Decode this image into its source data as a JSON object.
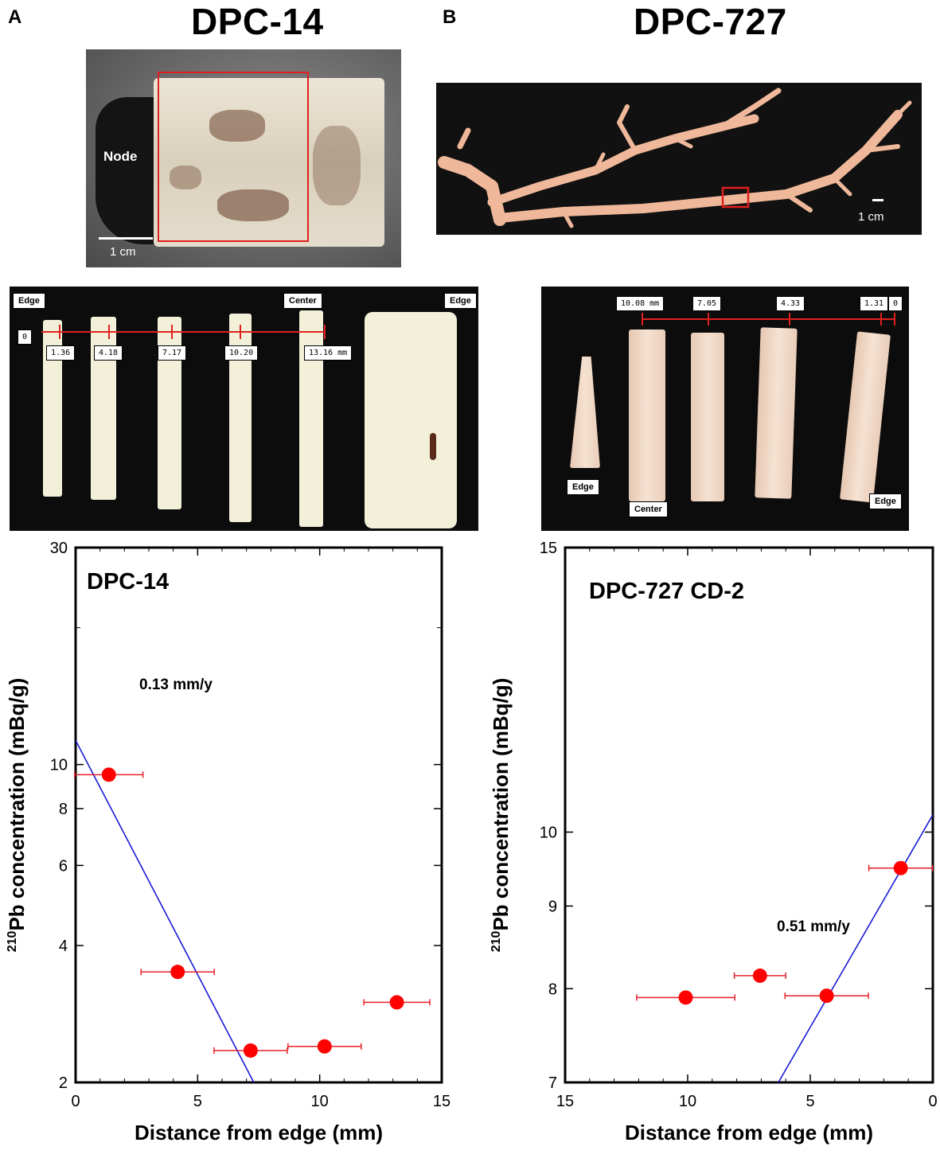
{
  "panel_a": {
    "letter": "A",
    "title": "DPC-14",
    "photo_labels": {
      "node": "Node",
      "scale": "1 cm"
    },
    "section_labels": {
      "edge_left": "Edge",
      "center": "Center",
      "edge_right": "Edge"
    },
    "distance_labels": [
      "0",
      "1.36",
      "4.18",
      "7.17",
      "10.20",
      "13.16 mm"
    ]
  },
  "panel_b": {
    "letter": "B",
    "title": "DPC-727",
    "photo_labels": {
      "scale": "1 cm"
    },
    "section_labels": {
      "edge_left": "Edge",
      "center": "Center",
      "edge_right": "Edge"
    },
    "distance_labels": [
      "10.08 mm",
      "7.05",
      "4.33",
      "1.31",
      "0"
    ]
  },
  "colors": {
    "points": "#ff0000",
    "errorbars": "#e8202a",
    "fit_line": "#1a1ad6",
    "highlight_box": "#e0201e"
  },
  "chart_data": [
    {
      "type": "scatter",
      "title": "DPC-14",
      "xlabel": "Distance from edge (mm)",
      "ylabel_sup": "210",
      "ylabel": "Pb concentration (mBq/g)",
      "xlim": [
        0,
        15
      ],
      "ylim": [
        2,
        30
      ],
      "yscale": "log",
      "x_reversed": false,
      "xticks": [
        0,
        5,
        10,
        15
      ],
      "yticks": [
        2,
        4,
        6,
        8,
        10,
        30
      ],
      "points": [
        {
          "x": 1.36,
          "y": 9.5,
          "xerr": 1.4
        },
        {
          "x": 4.18,
          "y": 3.5,
          "xerr": 1.5
        },
        {
          "x": 7.17,
          "y": 2.35,
          "xerr": 1.5
        },
        {
          "x": 10.2,
          "y": 2.4,
          "xerr": 1.5
        },
        {
          "x": 13.16,
          "y": 3.0,
          "xerr": 1.35
        }
      ],
      "fit_line": {
        "x": [
          0,
          7.3
        ],
        "y": [
          11.3,
          2.0
        ]
      },
      "annotation": "0.13 mm/y"
    },
    {
      "type": "scatter",
      "title": "DPC-727 CD-2",
      "xlabel": "Distance from edge (mm)",
      "ylabel_sup": "210",
      "ylabel": "Pb concentration (mBq/g)",
      "xlim": [
        0,
        15
      ],
      "ylim": [
        7,
        15
      ],
      "yscale": "log",
      "x_reversed": true,
      "xticks": [
        15,
        10,
        5,
        0
      ],
      "yticks": [
        7,
        8,
        9,
        10,
        15
      ],
      "points": [
        {
          "x": 10.08,
          "y": 7.9,
          "xerr": 2.0
        },
        {
          "x": 7.05,
          "y": 8.15,
          "xerr": 1.05
        },
        {
          "x": 4.33,
          "y": 7.92,
          "xerr": 1.7
        },
        {
          "x": 1.31,
          "y": 9.5,
          "xerr": 1.3
        }
      ],
      "fit_line": {
        "x": [
          6.3,
          0
        ],
        "y": [
          7.0,
          10.25
        ]
      },
      "annotation": "0.51 mm/y"
    }
  ]
}
